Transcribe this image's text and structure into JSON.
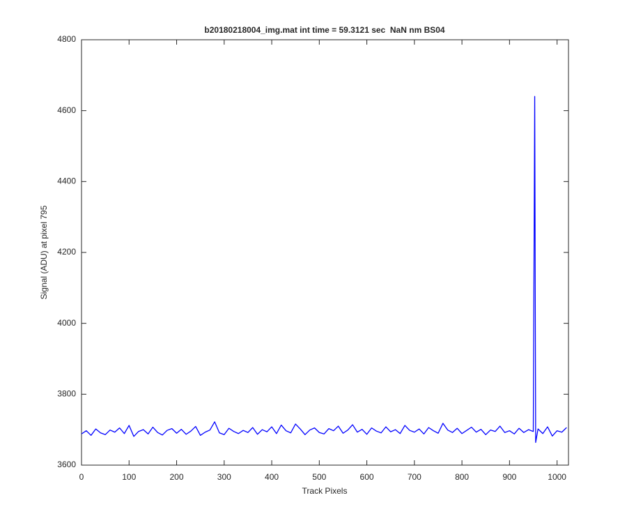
{
  "chart_data": {
    "type": "line",
    "title": "b20180218004_img.mat int time = 59.3121 sec  NaN nm BS04",
    "x_label": "Track Pixels",
    "y_label": "Signal (ADU) at pixel 795",
    "color": "#0000ff",
    "x": [
      0,
      10,
      20,
      30,
      40,
      50,
      60,
      70,
      80,
      90,
      100,
      110,
      120,
      130,
      140,
      150,
      160,
      170,
      180,
      190,
      200,
      210,
      220,
      230,
      240,
      250,
      260,
      270,
      280,
      290,
      300,
      310,
      320,
      330,
      340,
      350,
      360,
      370,
      380,
      390,
      400,
      410,
      420,
      430,
      440,
      450,
      460,
      470,
      480,
      490,
      500,
      510,
      520,
      530,
      540,
      550,
      560,
      570,
      580,
      590,
      600,
      610,
      620,
      630,
      640,
      650,
      660,
      670,
      680,
      690,
      700,
      710,
      720,
      730,
      740,
      750,
      760,
      770,
      780,
      790,
      800,
      810,
      820,
      830,
      840,
      850,
      860,
      870,
      880,
      890,
      900,
      910,
      920,
      930,
      940,
      950,
      953,
      955,
      960,
      970,
      980,
      990,
      1000,
      1010,
      1020
    ],
    "values": [
      3688,
      3697,
      3684,
      3702,
      3691,
      3686,
      3699,
      3693,
      3705,
      3689,
      3712,
      3681,
      3695,
      3700,
      3688,
      3707,
      3692,
      3685,
      3698,
      3703,
      3690,
      3701,
      3687,
      3696,
      3709,
      3684,
      3693,
      3699,
      3722,
      3691,
      3686,
      3704,
      3695,
      3689,
      3698,
      3692,
      3706,
      3687,
      3700,
      3694,
      3708,
      3689,
      3713,
      3697,
      3691,
      3716,
      3702,
      3686,
      3699,
      3705,
      3692,
      3688,
      3703,
      3697,
      3710,
      3690,
      3699,
      3714,
      3693,
      3701,
      3687,
      3705,
      3696,
      3691,
      3708,
      3694,
      3700,
      3689,
      3712,
      3698,
      3693,
      3702,
      3688,
      3706,
      3697,
      3690,
      3718,
      3699,
      3692,
      3704,
      3689,
      3698,
      3707,
      3693,
      3701,
      3686,
      3699,
      3695,
      3710,
      3692,
      3697,
      3688,
      3704,
      3692,
      3700,
      3695,
      4640,
      3664,
      3702,
      3689,
      3708,
      3682,
      3697,
      3693,
      3706
    ],
    "xlim": [
      0,
      1024
    ],
    "ylim": [
      3600,
      4800
    ],
    "xticks": [
      0,
      100,
      200,
      300,
      400,
      500,
      600,
      700,
      800,
      900,
      1000
    ],
    "yticks": [
      3600,
      3800,
      4000,
      4200,
      4400,
      4600,
      4800
    ],
    "grid": false
  }
}
